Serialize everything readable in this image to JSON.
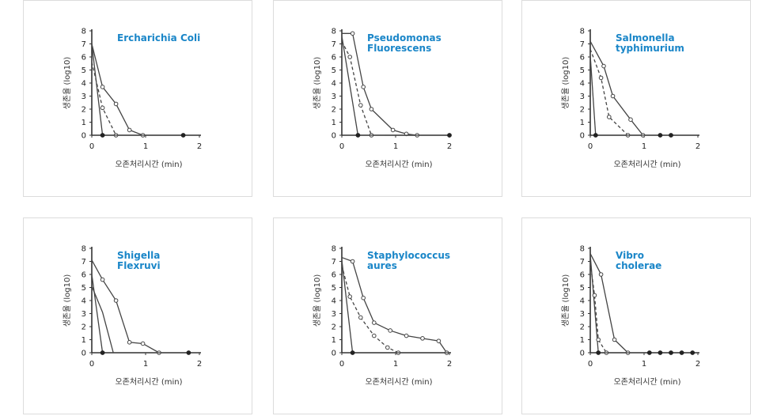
{
  "chart_data": [
    {
      "type": "line",
      "title": [
        "Ercharichia Coli"
      ],
      "xlabel": "오존처리시간 (min)",
      "ylabel": "생존율 (log10)",
      "xlim": [
        0,
        2
      ],
      "ylim": [
        0,
        8
      ],
      "xticks": [
        0,
        1,
        2
      ],
      "yticks": [
        0,
        1,
        2,
        3,
        4,
        5,
        6,
        7,
        8
      ],
      "series": [
        {
          "style": "solid",
          "marker": "none",
          "x": [
            0,
            0.2
          ],
          "y": [
            7,
            0
          ]
        },
        {
          "style": "solid",
          "marker": "open",
          "x": [
            0,
            0.2,
            0.45,
            0.7,
            0.95
          ],
          "y": [
            7,
            3.7,
            2.4,
            0.4,
            0
          ]
        },
        {
          "style": "dashed",
          "marker": "open",
          "x": [
            0,
            0.2,
            0.45
          ],
          "y": [
            5.6,
            2.1,
            0
          ]
        },
        {
          "style": "solid",
          "marker": "filled",
          "x": [
            0.2,
            1.7,
            2.0
          ],
          "y": [
            0,
            0,
            0
          ],
          "markers_at": [
            0.2,
            1.7
          ]
        }
      ]
    },
    {
      "type": "line",
      "title": [
        "Pseudomonas",
        "Fluorescens"
      ],
      "xlabel": "오존처리시간 (min)",
      "ylabel": "생존율 (log10)",
      "xlim": [
        0,
        2
      ],
      "ylim": [
        0,
        8
      ],
      "xticks": [
        0,
        1,
        2
      ],
      "yticks": [
        0,
        1,
        2,
        3,
        4,
        5,
        6,
        7,
        8
      ],
      "series": [
        {
          "style": "solid",
          "marker": "none",
          "x": [
            0,
            0.3
          ],
          "y": [
            7.6,
            0
          ]
        },
        {
          "style": "solid",
          "marker": "open",
          "x": [
            0,
            0.2,
            0.4,
            0.55,
            0.95,
            1.2,
            1.4
          ],
          "y": [
            7.8,
            7.8,
            3.7,
            2.0,
            0.4,
            0.1,
            0
          ]
        },
        {
          "style": "dashed",
          "marker": "open",
          "x": [
            0,
            0.15,
            0.35,
            0.55
          ],
          "y": [
            7.2,
            6.0,
            2.3,
            0
          ]
        },
        {
          "style": "solid",
          "marker": "filled",
          "x": [
            0.3,
            0.6
          ],
          "y": [
            0,
            0
          ],
          "markers_at": [
            0.3
          ]
        },
        {
          "style": "solid",
          "marker": "filled",
          "x": [
            0.8,
            2.0
          ],
          "y": [
            0,
            0
          ],
          "markers_at": [
            2.0
          ]
        }
      ]
    },
    {
      "type": "line",
      "title": [
        "Salmonella",
        "typhimurium"
      ],
      "xlabel": "오존처리시간 (min)",
      "ylabel": "생존율 (log10)",
      "xlim": [
        0,
        2
      ],
      "ylim": [
        0,
        8
      ],
      "xticks": [
        0,
        1,
        2
      ],
      "yticks": [
        0,
        1,
        2,
        3,
        4,
        5,
        6,
        7,
        8
      ],
      "series": [
        {
          "style": "solid",
          "marker": "none",
          "x": [
            0,
            0.1
          ],
          "y": [
            6.1,
            0
          ]
        },
        {
          "style": "solid",
          "marker": "open",
          "x": [
            0,
            0.25,
            0.42,
            0.75,
            0.98
          ],
          "y": [
            7.2,
            5.3,
            3.0,
            1.2,
            0
          ]
        },
        {
          "style": "dashed",
          "marker": "open",
          "x": [
            0,
            0.2,
            0.35,
            0.7
          ],
          "y": [
            6.6,
            4.4,
            1.4,
            0
          ]
        },
        {
          "style": "solid",
          "marker": "filled",
          "x": [
            0.1,
            1.5
          ],
          "y": [
            0,
            0
          ],
          "markers_at": [
            0.1,
            1.3,
            1.5
          ]
        }
      ]
    },
    {
      "type": "line",
      "title": [
        "Shigella",
        "Flexruvi"
      ],
      "xlabel": "오존처리시간 (min)",
      "ylabel": "생존율 (log10)",
      "xlim": [
        0,
        2
      ],
      "ylim": [
        0,
        8
      ],
      "xticks": [
        0,
        1,
        2
      ],
      "yticks": [
        0,
        1,
        2,
        3,
        4,
        5,
        6,
        7,
        8
      ],
      "series": [
        {
          "style": "solid",
          "marker": "none",
          "x": [
            0,
            0.2
          ],
          "y": [
            6.0,
            0
          ]
        },
        {
          "style": "solid",
          "marker": "none",
          "x": [
            0,
            0.2,
            0.4
          ],
          "y": [
            5.1,
            3.1,
            0
          ]
        },
        {
          "style": "solid",
          "marker": "open",
          "x": [
            0,
            0.2,
            0.45,
            0.7,
            0.95,
            1.25
          ],
          "y": [
            7.1,
            5.6,
            4.0,
            0.8,
            0.7,
            0
          ]
        },
        {
          "style": "solid",
          "marker": "filled",
          "x": [
            0.2,
            1.8
          ],
          "y": [
            0,
            0
          ],
          "markers_at": [
            0.2,
            1.8
          ]
        }
      ]
    },
    {
      "type": "line",
      "title": [
        "Staphylococcus",
        "aures"
      ],
      "xlabel": "오존처리시간 (min)",
      "ylabel": "생존율 (log10)",
      "xlim": [
        0,
        2
      ],
      "ylim": [
        0,
        8
      ],
      "xticks": [
        0,
        1,
        2
      ],
      "yticks": [
        0,
        1,
        2,
        3,
        4,
        5,
        6,
        7,
        8
      ],
      "series": [
        {
          "style": "solid",
          "marker": "none",
          "x": [
            0,
            0.2
          ],
          "y": [
            7.1,
            0
          ]
        },
        {
          "style": "solid",
          "marker": "open",
          "x": [
            0,
            0.2,
            0.4,
            0.6,
            0.9,
            1.2,
            1.5,
            1.8,
            1.95
          ],
          "y": [
            7.3,
            7.0,
            4.2,
            2.3,
            1.7,
            1.3,
            1.1,
            0.9,
            0
          ]
        },
        {
          "style": "dashed",
          "marker": "open",
          "x": [
            0,
            0.15,
            0.35,
            0.6,
            0.85,
            1.05
          ],
          "y": [
            6.7,
            4.3,
            2.7,
            1.3,
            0.4,
            0
          ]
        },
        {
          "style": "solid",
          "marker": "filled",
          "x": [
            0.2,
            2.0
          ],
          "y": [
            0,
            0
          ],
          "markers_at": [
            0.2
          ]
        }
      ]
    },
    {
      "type": "line",
      "title": [
        "Vibro",
        "cholerae"
      ],
      "xlabel": "오존처리시간 (min)",
      "ylabel": "생존율 (log10)",
      "xlim": [
        0,
        2
      ],
      "ylim": [
        0,
        8
      ],
      "xticks": [
        0,
        1,
        2
      ],
      "yticks": [
        0,
        1,
        2,
        3,
        4,
        5,
        6,
        7,
        8
      ],
      "series": [
        {
          "style": "solid",
          "marker": "none",
          "x": [
            0,
            0.15
          ],
          "y": [
            7.5,
            0
          ]
        },
        {
          "style": "solid",
          "marker": "open",
          "x": [
            0,
            0.2,
            0.45,
            0.7
          ],
          "y": [
            7.6,
            6.0,
            1.0,
            0
          ]
        },
        {
          "style": "dashed",
          "marker": "open",
          "x": [
            0,
            0.08,
            0.15,
            0.3
          ],
          "y": [
            6.9,
            4.4,
            1.0,
            0
          ]
        },
        {
          "style": "solid",
          "marker": "filled",
          "x": [
            0.15,
            1.9
          ],
          "y": [
            0,
            0
          ],
          "markers_at": [
            0.15,
            1.1,
            1.3,
            1.5,
            1.7,
            1.9
          ]
        }
      ]
    }
  ]
}
